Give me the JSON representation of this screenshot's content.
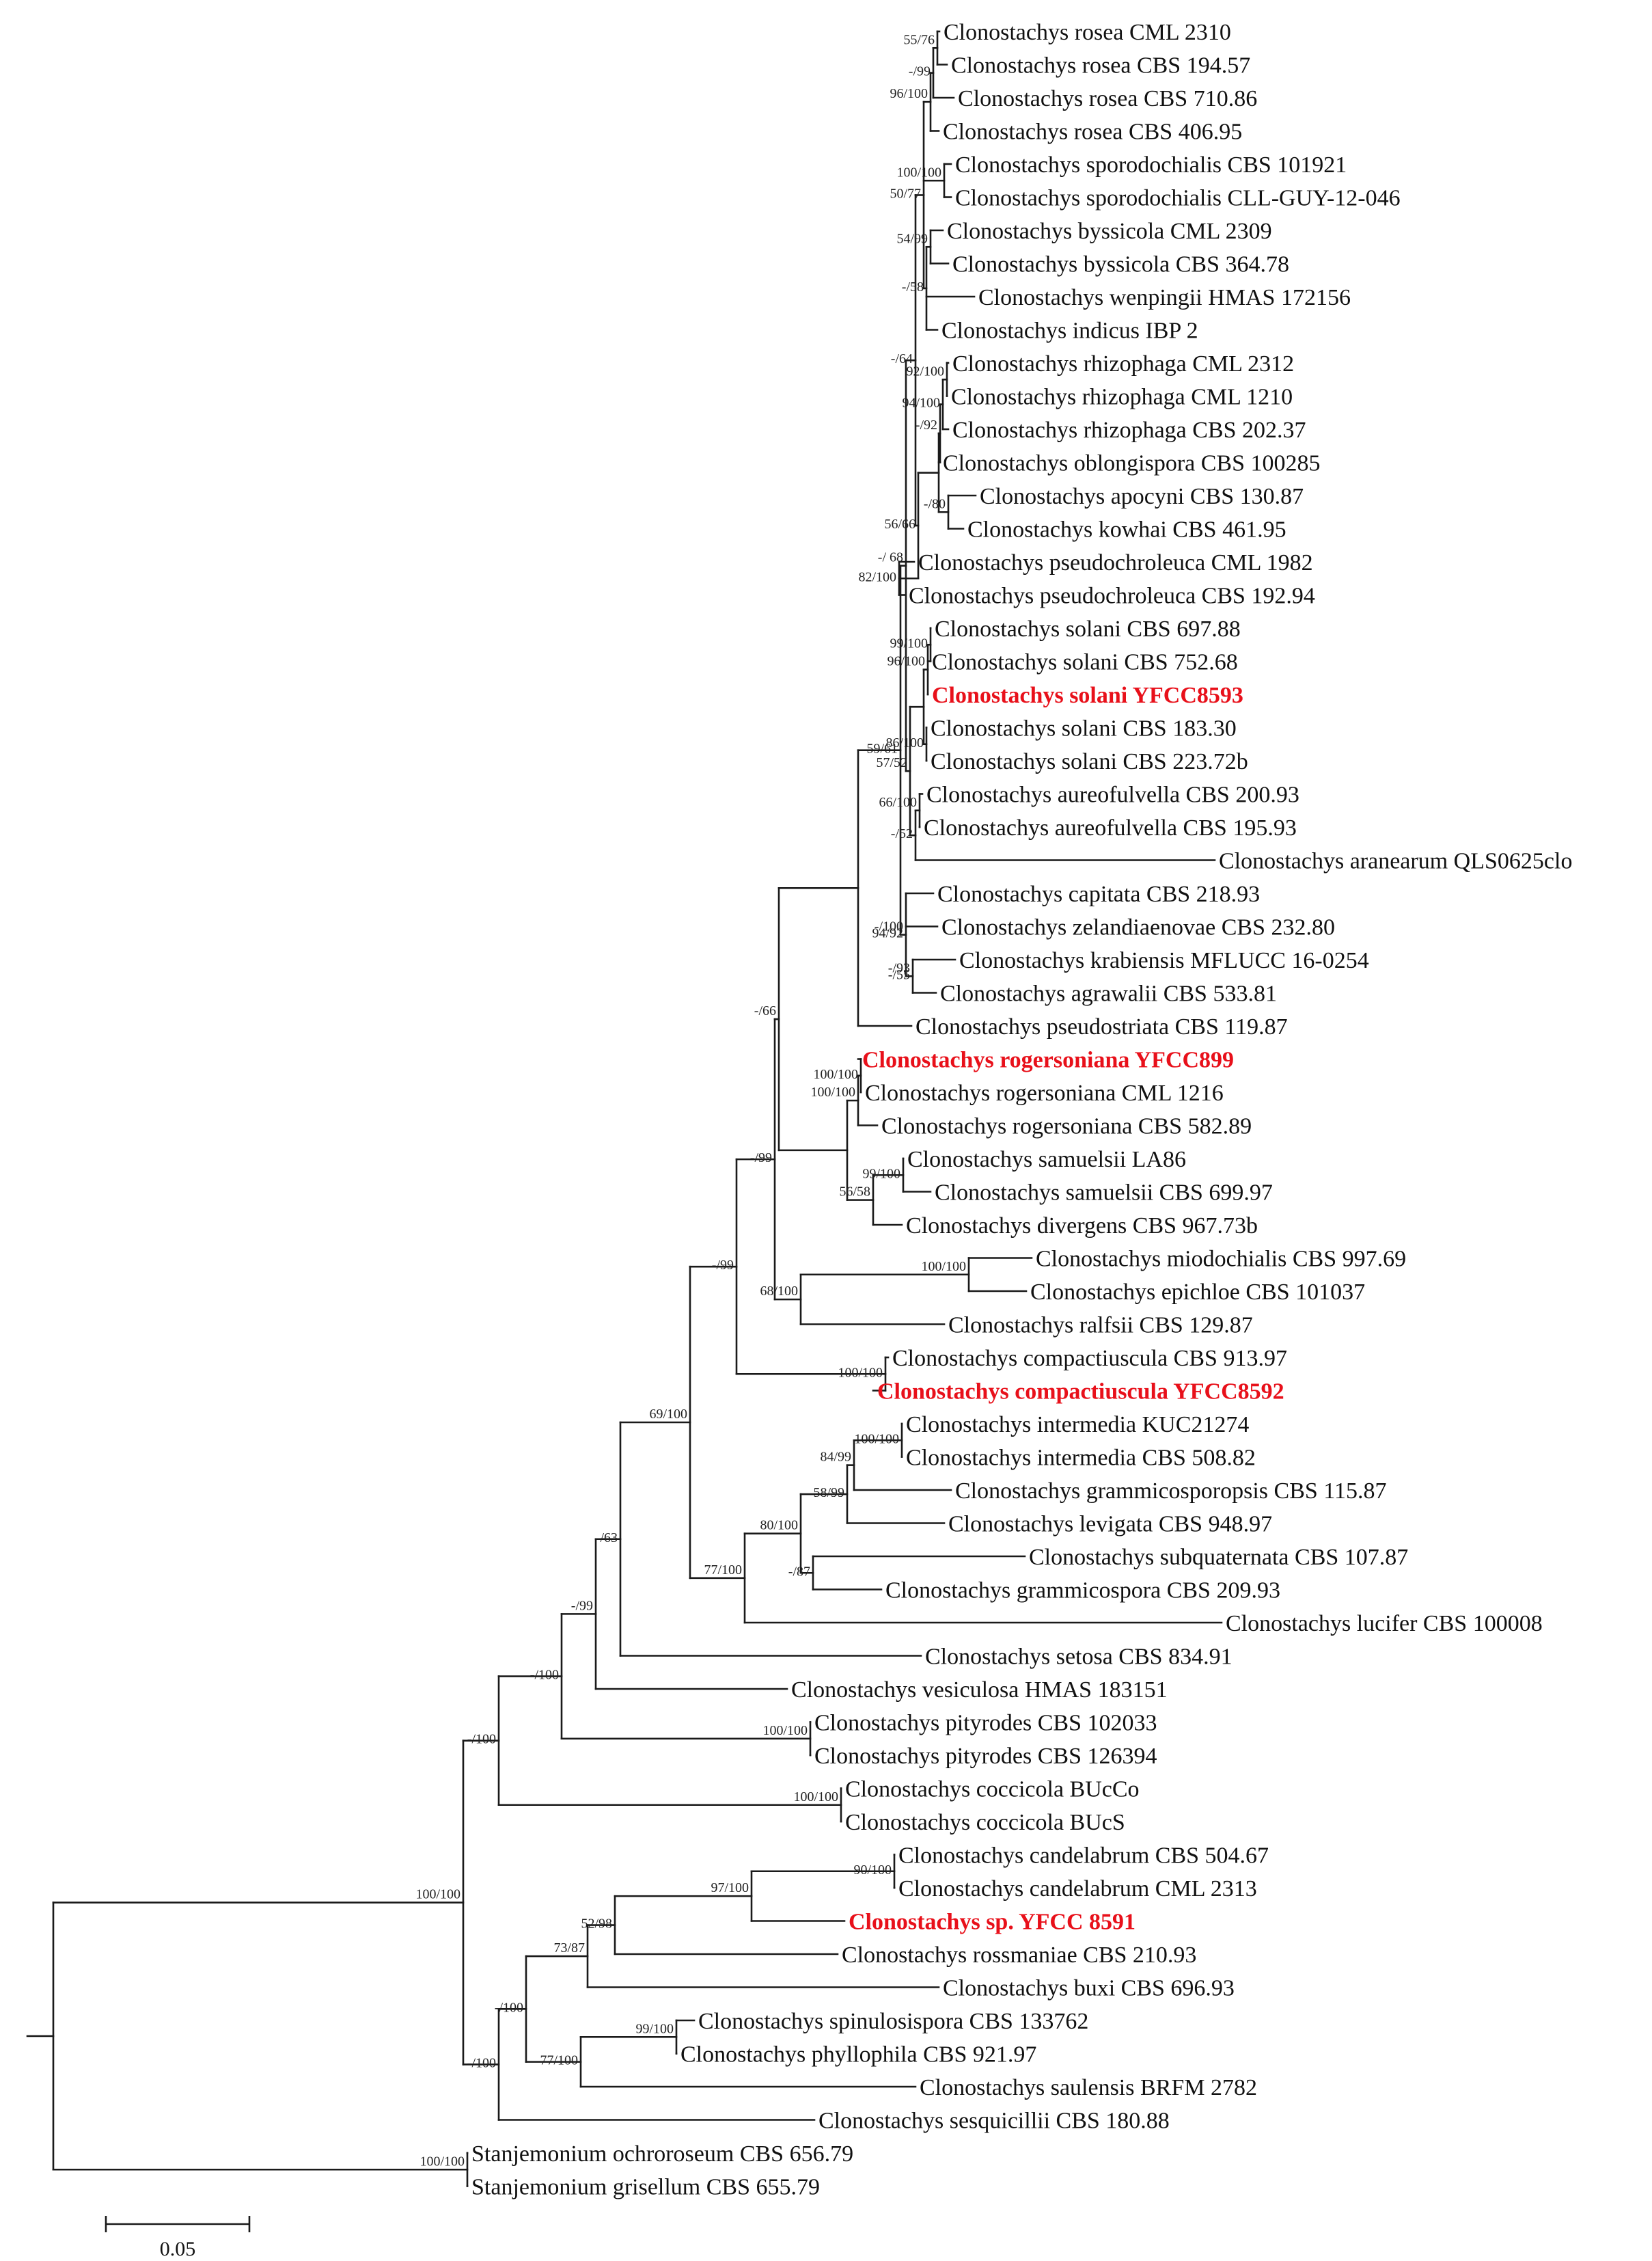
{
  "colors": {
    "branch": "#1a1a1a",
    "text": "#111111",
    "highlight": "#e8101a"
  },
  "scale": {
    "label": "0.05",
    "length": 0.05
  },
  "taxa": [
    "Clonostachys rosea CML 2310",
    "Clonostachys rosea CBS 194.57",
    "Clonostachys rosea CBS 710.86",
    "Clonostachys rosea CBS 406.95",
    "Clonostachys sporodochialis CBS 101921",
    "Clonostachys sporodochialis CLL-GUY-12-046",
    "Clonostachys byssicola CML 2309",
    "Clonostachys byssicola CBS 364.78",
    "Clonostachys wenpingii HMAS 172156",
    "Clonostachys indicus IBP 2",
    "Clonostachys rhizophaga CML 2312",
    "Clonostachys rhizophaga CML 1210",
    "Clonostachys rhizophaga CBS 202.37",
    "Clonostachys oblongispora CBS 100285",
    "Clonostachys apocyni CBS 130.87",
    "Clonostachys kowhai CBS 461.95",
    "Clonostachys pseudochroleuca CML 1982",
    "Clonostachys pseudochroleuca CBS 192.94",
    "Clonostachys solani CBS 697.88",
    "Clonostachys solani CBS 752.68",
    "Clonostachys solani YFCC8593",
    "Clonostachys solani CBS 183.30",
    "Clonostachys solani CBS 223.72b",
    "Clonostachys aureofulvella CBS 200.93",
    "Clonostachys aureofulvella CBS 195.93",
    "Clonostachys aranearum QLS0625clo",
    "Clonostachys capitata CBS 218.93",
    "Clonostachys zelandiaenovae CBS 232.80",
    "Clonostachys krabiensis MFLUCC 16-0254",
    "Clonostachys agrawalii CBS 533.81",
    "Clonostachys pseudostriata CBS 119.87",
    "Clonostachys rogersoniana YFCC899",
    "Clonostachys rogersoniana CML 1216",
    "Clonostachys rogersoniana CBS 582.89",
    "Clonostachys samuelsii LA86",
    "Clonostachys samuelsii CBS 699.97",
    "Clonostachys divergens CBS 967.73b",
    "Clonostachys miodochialis CBS 997.69",
    "Clonostachys epichloe CBS 101037",
    "Clonostachys ralfsii CBS 129.87",
    "Clonostachys compactiuscula CBS 913.97",
    "Clonostachys compactiuscula YFCC8592",
    "Clonostachys intermedia KUC21274",
    "Clonostachys intermedia CBS 508.82",
    "Clonostachys grammicosporopsis CBS 115.87",
    "Clonostachys levigata CBS 948.97",
    "Clonostachys subquaternata CBS 107.87",
    "Clonostachys grammicospora CBS 209.93",
    "Clonostachys lucifer CBS 100008",
    "Clonostachys setosa CBS 834.91",
    "Clonostachys vesiculosa HMAS 183151",
    "Clonostachys pityrodes CBS 102033",
    "Clonostachys pityrodes CBS 126394",
    "Clonostachys coccicola BUcCo",
    "Clonostachys coccicola BUcS",
    "Clonostachys candelabrum CBS 504.67",
    "Clonostachys candelabrum CML 2313",
    "Clonostachys sp. YFCC 8591",
    "Clonostachys rossmaniae CBS 210.93",
    "Clonostachys buxi CBS 696.93",
    "Clonostachys spinulosispora CBS 133762",
    "Clonostachys phyllophila CBS 921.97",
    "Clonostachys saulensis BRFM 2782",
    "Clonostachys sesquicillii CBS 180.88",
    "Stanjemonium ochroroseum CBS 656.79",
    "Stanjemonium grisellum CBS 655.79"
  ],
  "highlighted_taxa": [
    "Clonostachys solani YFCC8593",
    "Clonostachys rogersoniana YFCC899",
    "Clonostachys compactiuscula YFCC8592",
    "Clonostachys sp. YFCC 8591"
  ],
  "support_values": [
    "55/76",
    "-/99",
    "96/100",
    "50/77",
    "100/100",
    "-/64",
    "54/99",
    "-/58",
    "92/100",
    "94/100",
    "-/92",
    "56/66",
    "-/80",
    "82/100",
    "-/ 68",
    "99/100",
    "96/100",
    "86/100",
    "57/52",
    "59/61",
    "66/100",
    "-/52",
    "-/100",
    "94/92",
    "-/93",
    "-/55",
    "-/66",
    "100/100",
    "100/100",
    "99/100",
    "56/58",
    "-/99",
    "100/100",
    "-/99",
    "68/100",
    "100/100",
    "69/100",
    "100/100",
    "84/99",
    "58/99",
    "80/100",
    "-/87",
    "77/100",
    "-/63",
    "-/99",
    "-/100",
    "100/100",
    "-/100",
    "100/100",
    "90/100",
    "97/100",
    "52/98",
    "73/87",
    "-/100",
    "99/100",
    "77/100",
    "100/100",
    "-/100",
    "100/100"
  ]
}
